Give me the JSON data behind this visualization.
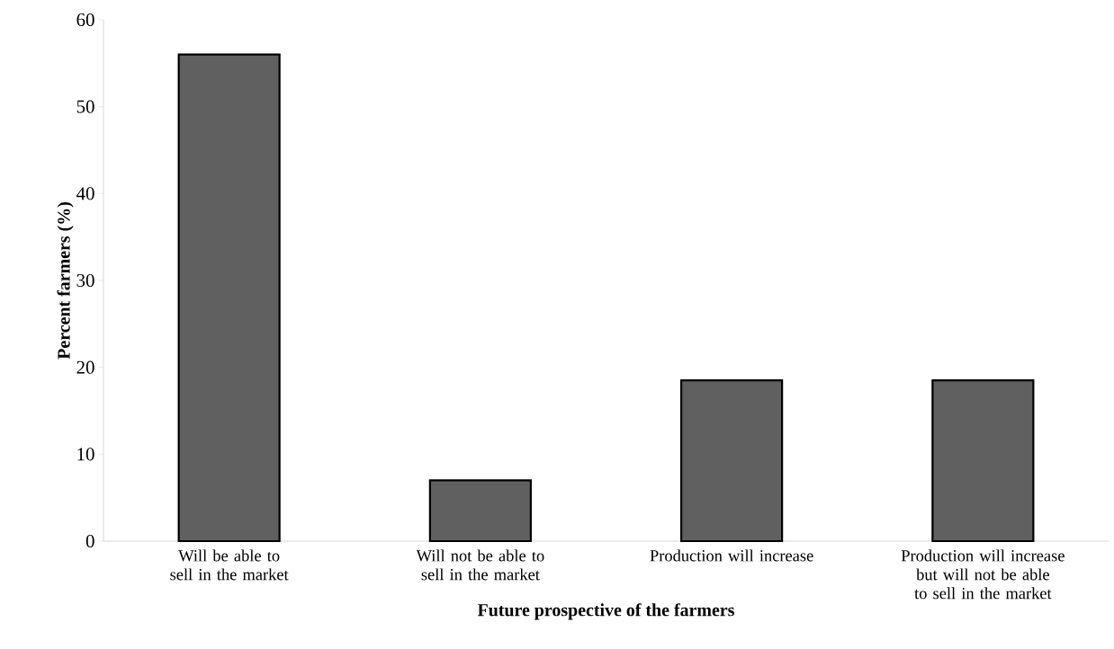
{
  "chart_data": {
    "type": "bar",
    "xlabel": "Future prospective of the farmers",
    "ylabel": "Percent farmers (%)",
    "categories": [
      "Will be able to sell in the market",
      "Will not be able to sell in the market",
      "Production will increase",
      "Production will increase but will not be able to sell in the market"
    ],
    "values": [
      56,
      7,
      18.5,
      18.5
    ],
    "color": "#606060",
    "ylim": [
      0,
      60
    ],
    "yticks": [
      0,
      10,
      20,
      30,
      40,
      50,
      60
    ],
    "grid": false
  }
}
